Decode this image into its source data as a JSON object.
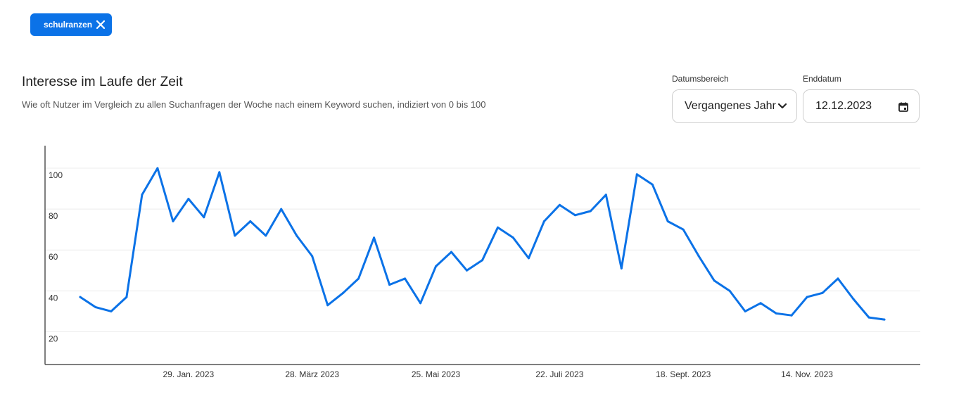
{
  "filter": {
    "keyword_chip": "schulranzen"
  },
  "header": {
    "title": "Interesse im Laufe der Zeit",
    "subtitle": "Wie oft Nutzer im Vergleich zu allen Suchanfragen der Woche nach einem Keyword suchen, indiziert von 0 bis 100"
  },
  "controls": {
    "range_label": "Datumsbereich",
    "range_value": "Vergangenes Jahr",
    "end_label": "Enddatum",
    "end_value": "12.12.2023"
  },
  "colors": {
    "accent": "#0b72e7",
    "line": "#0b72e7"
  },
  "chart_data": {
    "type": "line",
    "x_tick_labels": [
      "29. Jan. 2023",
      "28. März 2023",
      "25. Mai 2023",
      "22. Juli 2023",
      "18. Sept. 2023",
      "14. Nov. 2023"
    ],
    "x_tick_index": [
      7,
      15,
      23,
      31,
      39,
      47
    ],
    "y_ticks": [
      20,
      40,
      60,
      80,
      100
    ],
    "ylim": [
      4,
      111
    ],
    "grid": true,
    "series": [
      {
        "values": [
          37,
          32,
          30,
          37,
          87,
          100,
          74,
          85,
          76,
          98,
          67,
          74,
          67,
          80,
          67,
          57,
          33,
          39,
          46,
          66,
          43,
          46,
          34,
          52,
          59,
          50,
          55,
          71,
          66,
          56,
          74,
          82,
          77,
          79,
          87,
          51,
          97,
          92,
          74,
          70,
          57,
          45,
          40,
          30,
          34,
          29,
          28,
          37,
          39,
          46,
          36,
          27,
          26
        ]
      }
    ]
  }
}
